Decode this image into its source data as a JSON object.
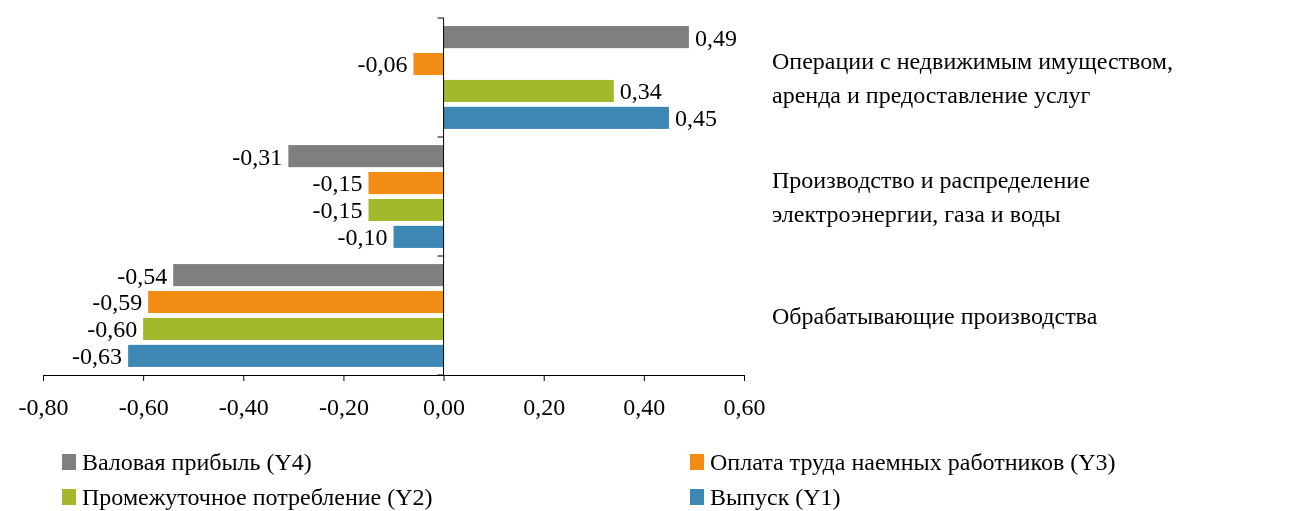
{
  "chart_data": {
    "type": "bar",
    "orientation": "horizontal",
    "categories": [
      "Операции с недвижимым имуществом,\nаренда и предоставление услуг",
      "Производство и распределение\nэлектроэнергии, газа и воды",
      "Обрабатывающие производства"
    ],
    "series": [
      {
        "name": "Валовая прибыль (Y4)",
        "color": "#7f7f7f",
        "values": [
          0.49,
          -0.31,
          -0.54
        ],
        "value_labels": [
          "0,49",
          "-0,31",
          "-0,54"
        ]
      },
      {
        "name": "Оплата труда наемных работников (Y3)",
        "color": "#f28c12",
        "values": [
          -0.06,
          -0.15,
          -0.59
        ],
        "value_labels": [
          "-0,06",
          "-0,15",
          "-0,59"
        ]
      },
      {
        "name": "Промежуточное потребление (Y2)",
        "color": "#a3b82a",
        "values": [
          0.34,
          -0.15,
          -0.6
        ],
        "value_labels": [
          "0,34",
          "-0,15",
          "-0,60"
        ]
      },
      {
        "name": "Выпуск (Y1)",
        "color": "#3d87b5",
        "values": [
          0.45,
          -0.1,
          -0.63
        ],
        "value_labels": [
          "0,45",
          "-0,10",
          "-0,63"
        ]
      }
    ],
    "xlim": [
      -0.8,
      0.6
    ],
    "xticks": [
      {
        "value": -0.8,
        "label": "-0,80"
      },
      {
        "value": -0.6,
        "label": "-0,60"
      },
      {
        "value": -0.4,
        "label": "-0,40"
      },
      {
        "value": -0.2,
        "label": "-0,20"
      },
      {
        "value": 0,
        "label": "0,00"
      },
      {
        "value": 0.2,
        "label": "0,20"
      },
      {
        "value": 0.4,
        "label": "0,40"
      },
      {
        "value": 0.6,
        "label": "0,60"
      }
    ],
    "legend": "bottom"
  }
}
